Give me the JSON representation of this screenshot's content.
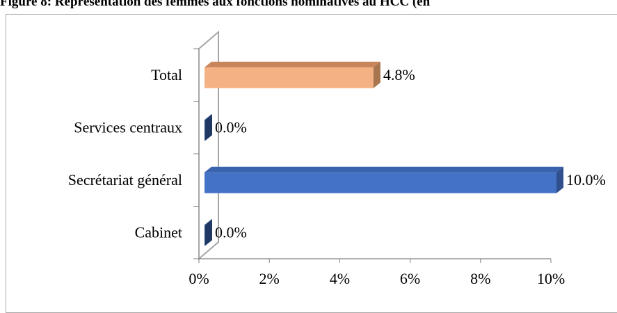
{
  "figure": {
    "title": "Figure 8: Représentation des femmes aux fonctions nominatives au HCC (en"
  },
  "chart_data": {
    "type": "bar",
    "orientation": "horizontal",
    "style": "3d",
    "categories": [
      "Cabinet",
      "Secrétariat général",
      "Services centraux",
      "Total"
    ],
    "values": [
      0.0,
      10.0,
      0.0,
      4.8
    ],
    "data_labels": [
      "0.0%",
      "10.0%",
      "0.0%",
      "4.8%"
    ],
    "x_ticks": [
      "0%",
      "2%",
      "4%",
      "6%",
      "8%",
      "10%"
    ],
    "xlim": [
      0,
      10
    ],
    "bar_colors": [
      "#2f528f",
      "#4472c4",
      "#2f528f",
      "#f4b183"
    ],
    "bar_side_colors": [
      "#1f3864",
      "#2f4f8f",
      "#1f3864",
      "#a9754f"
    ],
    "bar_top_colors": [
      "#3a5fa0",
      "#3a63ad",
      "#3a5fa0",
      "#c9855a"
    ],
    "title": "",
    "xlabel": "",
    "ylabel": "",
    "grid": false,
    "legend": "none"
  }
}
